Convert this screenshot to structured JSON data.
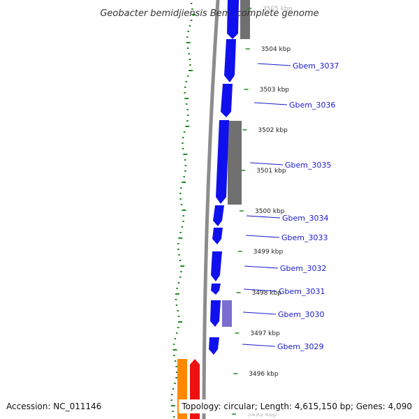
{
  "title": "Geobacter bemidjiensis Bem, complete genome",
  "footer": {
    "accession": "Accession: NC_011146",
    "topology": "Topology: circular; Length: 4,615,150 bp; Genes: 4,090"
  },
  "scale_labels": [
    "3505 kbp",
    "3504 kbp",
    "3503 kbp",
    "3502 kbp",
    "3501 kbp",
    "3500 kbp",
    "3499 kbp",
    "3498 kbp",
    "3497 kbp",
    "3496 kbp",
    "3495 kbp"
  ],
  "genes": [
    {
      "name": "Gbem_3037"
    },
    {
      "name": "Gbem_3036"
    },
    {
      "name": "Gbem_3035"
    },
    {
      "name": "Gbem_3034"
    },
    {
      "name": "Gbem_3033"
    },
    {
      "name": "Gbem_3032"
    },
    {
      "name": "Gbem_3031"
    },
    {
      "name": "Gbem_3030"
    },
    {
      "name": "Gbem_3029"
    }
  ],
  "colors": {
    "cds": "#1010ee",
    "homolog": "#707070",
    "light_homolog": "#7a6fd0",
    "rna": "#ee1111",
    "orange": "#ff8800",
    "backbone": "#8c8c8c",
    "gc_dots": "#228b22",
    "gene_label": "#1a1acc"
  }
}
